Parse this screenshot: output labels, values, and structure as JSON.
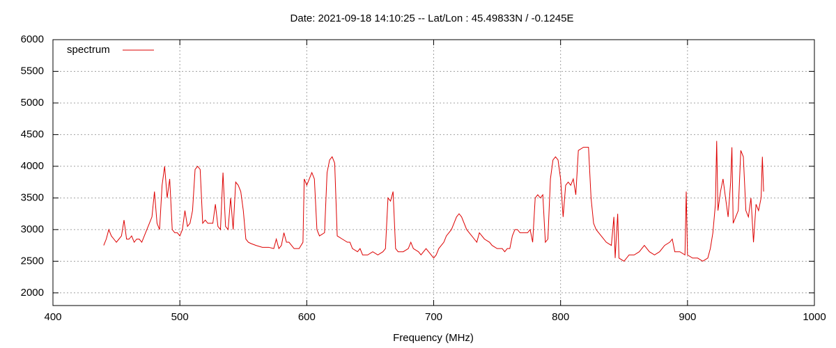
{
  "chart_data": {
    "type": "line",
    "title": "Date: 2021-09-18 14:10:25  --  Lat/Lon : 45.49833N / -0.1245E",
    "x_label": "Frequency (MHz)",
    "xlim": [
      400,
      1000
    ],
    "xticks": [
      400,
      500,
      600,
      700,
      800,
      900,
      1000
    ],
    "ylim": [
      1800,
      6000
    ],
    "yticks": [
      2000,
      2500,
      3000,
      3500,
      4000,
      4500,
      5000,
      5500,
      6000
    ],
    "grid": true,
    "legend": "top-left",
    "series": [
      {
        "name": "spectrum",
        "color": "#dd0000",
        "x": [
          440,
          442,
          444,
          446,
          448,
          450,
          452,
          454,
          456,
          458,
          460,
          462,
          464,
          466,
          468,
          470,
          472,
          474,
          476,
          478,
          480,
          482,
          484,
          486,
          488,
          490,
          492,
          494,
          496,
          498,
          500,
          502,
          504,
          506,
          508,
          510,
          512,
          514,
          516,
          518,
          520,
          522,
          524,
          526,
          528,
          530,
          532,
          534,
          536,
          538,
          540,
          542,
          544,
          546,
          548,
          550,
          552,
          554,
          556,
          560,
          565,
          570,
          574,
          576,
          578,
          580,
          582,
          584,
          586,
          590,
          594,
          597,
          598,
          600,
          602,
          604,
          606,
          608,
          610,
          614,
          616,
          618,
          620,
          622,
          624,
          628,
          632,
          634,
          636,
          640,
          642,
          644,
          648,
          652,
          656,
          660,
          662,
          664,
          666,
          668,
          670,
          672,
          676,
          680,
          682,
          684,
          688,
          690,
          694,
          696,
          698,
          700,
          702,
          704,
          706,
          708,
          710,
          714,
          716,
          718,
          720,
          722,
          724,
          726,
          728,
          730,
          732,
          734,
          736,
          738,
          740,
          744,
          746,
          750,
          754,
          756,
          758,
          760,
          762,
          764,
          766,
          768,
          770,
          772,
          774,
          776,
          778,
          780,
          782,
          784,
          786,
          788,
          790,
          792,
          794,
          796,
          798,
          800,
          802,
          804,
          806,
          808,
          810,
          812,
          814,
          818,
          822,
          824,
          826,
          828,
          832,
          836,
          840,
          842,
          843,
          845,
          846,
          850,
          854,
          858,
          862,
          866,
          870,
          874,
          878,
          882,
          886,
          888,
          890,
          894,
          898,
          899,
          900,
          904,
          908,
          912,
          916,
          918,
          920,
          922,
          923,
          924,
          926,
          928,
          930,
          932,
          934,
          935,
          936,
          938,
          940,
          942,
          944,
          946,
          948,
          950,
          952,
          954,
          956,
          958,
          959,
          960
        ],
        "values": [
          2750,
          2850,
          3000,
          2900,
          2850,
          2800,
          2850,
          2900,
          3150,
          2850,
          2850,
          2900,
          2800,
          2850,
          2850,
          2800,
          2900,
          3000,
          3100,
          3200,
          3600,
          3100,
          3000,
          3700,
          4000,
          3500,
          3800,
          3000,
          2950,
          2950,
          2900,
          3000,
          3300,
          3050,
          3100,
          3300,
          3950,
          4000,
          3950,
          3100,
          3150,
          3100,
          3100,
          3100,
          3400,
          3050,
          3000,
          3900,
          3050,
          3000,
          3500,
          3000,
          3750,
          3700,
          3600,
          3300,
          2850,
          2800,
          2780,
          2750,
          2720,
          2720,
          2700,
          2850,
          2700,
          2750,
          2950,
          2800,
          2800,
          2700,
          2700,
          2800,
          3800,
          3700,
          3800,
          3900,
          3800,
          3000,
          2900,
          2950,
          3900,
          4100,
          4150,
          4050,
          2900,
          2850,
          2800,
          2800,
          2700,
          2650,
          2700,
          2600,
          2600,
          2650,
          2600,
          2650,
          2700,
          3500,
          3450,
          3600,
          2700,
          2650,
          2650,
          2700,
          2800,
          2700,
          2650,
          2600,
          2700,
          2650,
          2600,
          2550,
          2600,
          2700,
          2750,
          2800,
          2900,
          3000,
          3100,
          3200,
          3250,
          3200,
          3100,
          3000,
          2950,
          2900,
          2850,
          2800,
          2950,
          2900,
          2850,
          2800,
          2750,
          2700,
          2700,
          2650,
          2700,
          2700,
          2900,
          3000,
          3000,
          2950,
          2950,
          2950,
          2950,
          3000,
          2800,
          3500,
          3550,
          3500,
          3550,
          2800,
          2850,
          3800,
          4100,
          4150,
          4100,
          3800,
          3200,
          3700,
          3750,
          3700,
          3800,
          3550,
          4250,
          4300,
          4300,
          3500,
          3100,
          3000,
          2900,
          2800,
          2750,
          3200,
          2550,
          3250,
          2550,
          2500,
          2600,
          2600,
          2650,
          2750,
          2650,
          2600,
          2650,
          2750,
          2800,
          2850,
          2650,
          2650,
          2600,
          3600,
          2600,
          2550,
          2550,
          2500,
          2550,
          2700,
          2950,
          3400,
          4400,
          3300,
          3600,
          3800,
          3500,
          3200,
          3750,
          4300,
          3100,
          3200,
          3300,
          4250,
          4150,
          3300,
          3200,
          3500,
          2800,
          3400,
          3300,
          3500,
          4150,
          3600
        ]
      }
    ]
  }
}
